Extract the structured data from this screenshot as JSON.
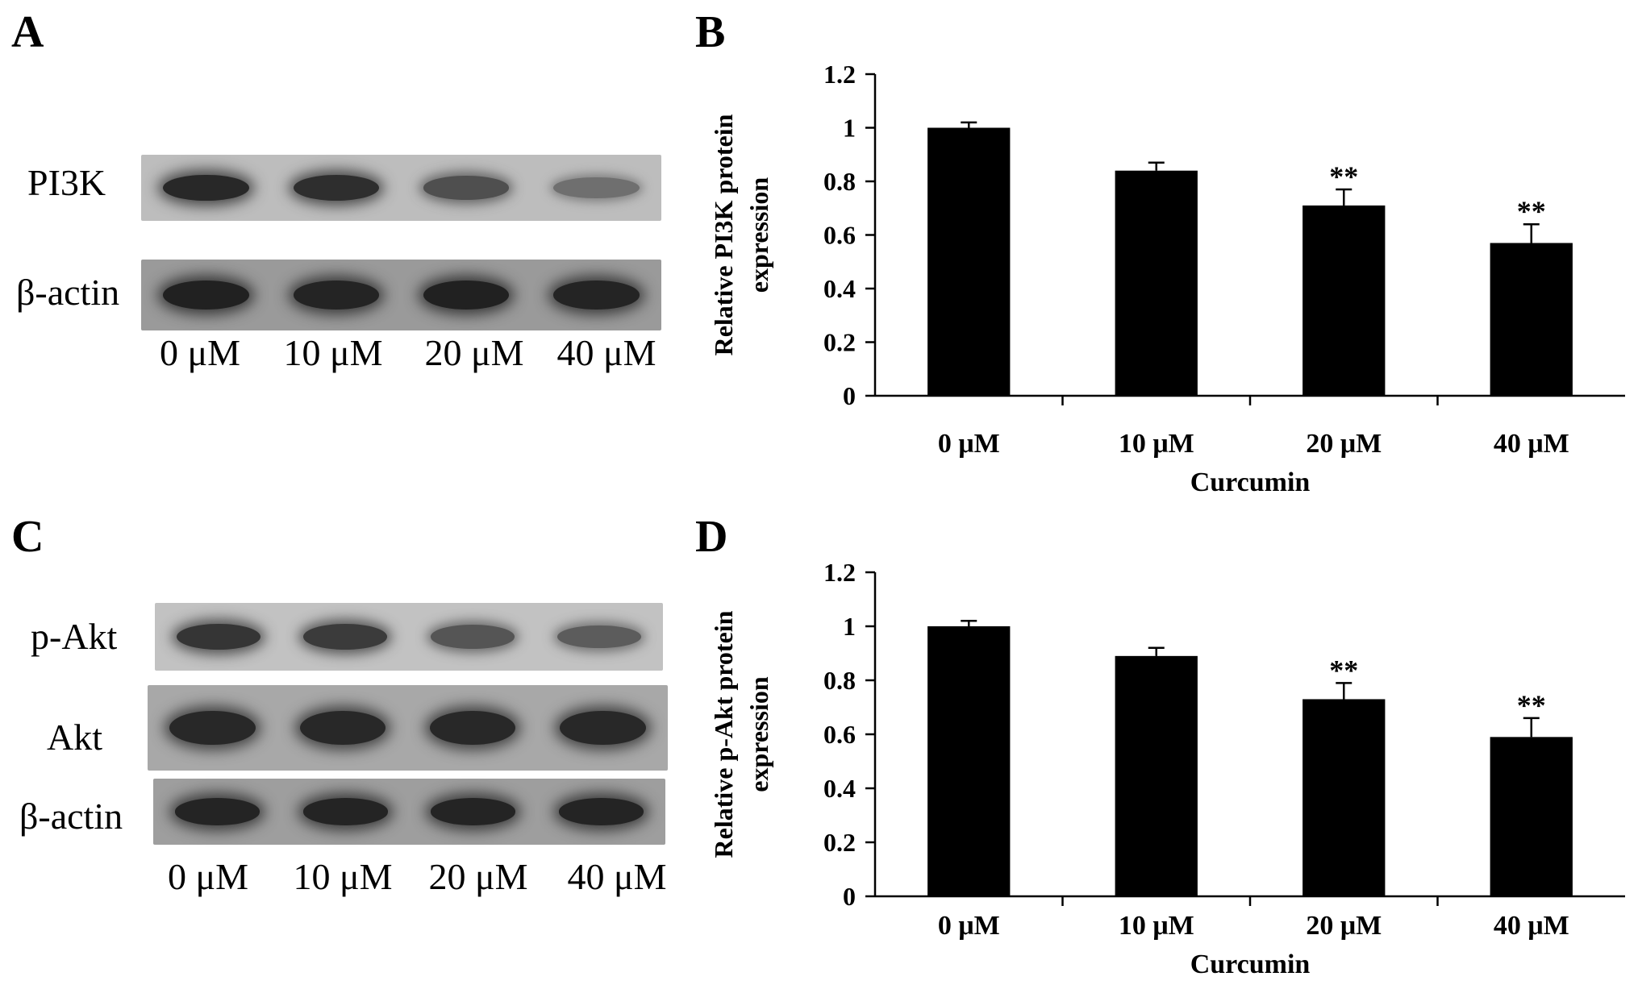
{
  "figure": {
    "panels": [
      {
        "letter": "A",
        "rows": [
          {
            "label": "PI3K",
            "intensities": [
              0.85,
              0.8,
              0.55,
              0.3
            ]
          },
          {
            "label": "β-actin",
            "intensities": [
              0.9,
              0.88,
              0.9,
              0.88
            ]
          }
        ],
        "lanes": [
          "0 μM",
          "10 μM",
          "20 μM",
          "40 μM"
        ]
      },
      {
        "letter": "C",
        "rows": [
          {
            "label": "p-Akt",
            "intensities": [
              0.75,
              0.7,
              0.5,
              0.45
            ]
          },
          {
            "label": "Akt",
            "intensities": [
              0.85,
              0.85,
              0.85,
              0.85
            ]
          },
          {
            "label": "β-actin",
            "intensities": [
              0.88,
              0.88,
              0.88,
              0.88
            ]
          }
        ],
        "lanes": [
          "0 μM",
          "10 μM",
          "20 μM",
          "40 μM"
        ]
      }
    ],
    "chart_letters": [
      "B",
      "D"
    ]
  },
  "chart_data": [
    {
      "type": "bar",
      "categories": [
        "0 μM",
        "10 μM",
        "20 μM",
        "40 μM"
      ],
      "values": [
        1.0,
        0.84,
        0.71,
        0.57
      ],
      "errors": [
        0.02,
        0.03,
        0.06,
        0.07
      ],
      "annotations": [
        "",
        "",
        "**",
        "**"
      ],
      "title": "",
      "xlabel": "Curcumin",
      "ylabel": "Relative PI3K protein expression",
      "ylabel_lines": [
        "Relative PI3K protein",
        "expression"
      ],
      "ylim": [
        0,
        1.2
      ],
      "yticks": [
        "0",
        "0.2",
        "0.4",
        "0.6",
        "0.8",
        "1",
        "1.2"
      ],
      "grid": false,
      "bar_color": "#000000"
    },
    {
      "type": "bar",
      "categories": [
        "0 μM",
        "10 μM",
        "20 μM",
        "40 μM"
      ],
      "values": [
        1.0,
        0.89,
        0.73,
        0.59
      ],
      "errors": [
        0.02,
        0.03,
        0.06,
        0.07
      ],
      "annotations": [
        "",
        "",
        "**",
        "**"
      ],
      "title": "",
      "xlabel": "Curcumin",
      "ylabel": "Relative p-Akt protein expression",
      "ylabel_lines": [
        "Relative p-Akt protein",
        "expression"
      ],
      "ylim": [
        0,
        1.2
      ],
      "yticks": [
        "0",
        "0.2",
        "0.4",
        "0.6",
        "0.8",
        "1",
        "1.2"
      ],
      "grid": false,
      "bar_color": "#000000"
    }
  ]
}
